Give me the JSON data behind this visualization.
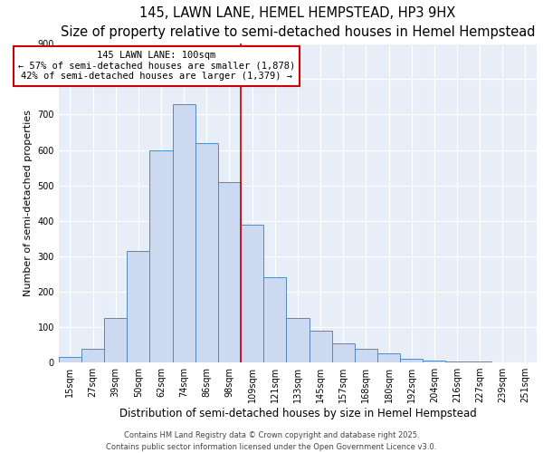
{
  "title": "145, LAWN LANE, HEMEL HEMPSTEAD, HP3 9HX",
  "subtitle": "Size of property relative to semi-detached houses in Hemel Hempstead",
  "xlabel": "Distribution of semi-detached houses by size in Hemel Hempstead",
  "ylabel": "Number of semi-detached properties",
  "bar_labels": [
    "15sqm",
    "27sqm",
    "39sqm",
    "50sqm",
    "62sqm",
    "74sqm",
    "86sqm",
    "98sqm",
    "109sqm",
    "121sqm",
    "133sqm",
    "145sqm",
    "157sqm",
    "168sqm",
    "180sqm",
    "192sqm",
    "204sqm",
    "216sqm",
    "227sqm",
    "239sqm",
    "251sqm"
  ],
  "bar_values": [
    15,
    40,
    125,
    315,
    600,
    730,
    620,
    510,
    390,
    240,
    125,
    90,
    55,
    40,
    25,
    10,
    5,
    3,
    2,
    1,
    0
  ],
  "bar_color": "#ccd9f0",
  "bar_edgecolor": "#5588bb",
  "vline_x_index": 7.5,
  "vline_color": "#cc0000",
  "annotation_title": "145 LAWN LANE: 100sqm",
  "annotation_line1": "← 57% of semi-detached houses are smaller (1,878)",
  "annotation_line2": "42% of semi-detached houses are larger (1,379) →",
  "annotation_box_edgecolor": "#cc0000",
  "ylim": [
    0,
    900
  ],
  "yticks": [
    0,
    100,
    200,
    300,
    400,
    500,
    600,
    700,
    800,
    900
  ],
  "plot_bg_color": "#e8eef8",
  "fig_bg_color": "#ffffff",
  "grid_color": "#ffffff",
  "footer1": "Contains HM Land Registry data © Crown copyright and database right 2025.",
  "footer2": "Contains public sector information licensed under the Open Government Licence v3.0.",
  "title_fontsize": 10.5,
  "subtitle_fontsize": 8.5,
  "xlabel_fontsize": 8.5,
  "ylabel_fontsize": 8,
  "tick_fontsize": 7,
  "annotation_fontsize": 7.5,
  "footer_fontsize": 6
}
